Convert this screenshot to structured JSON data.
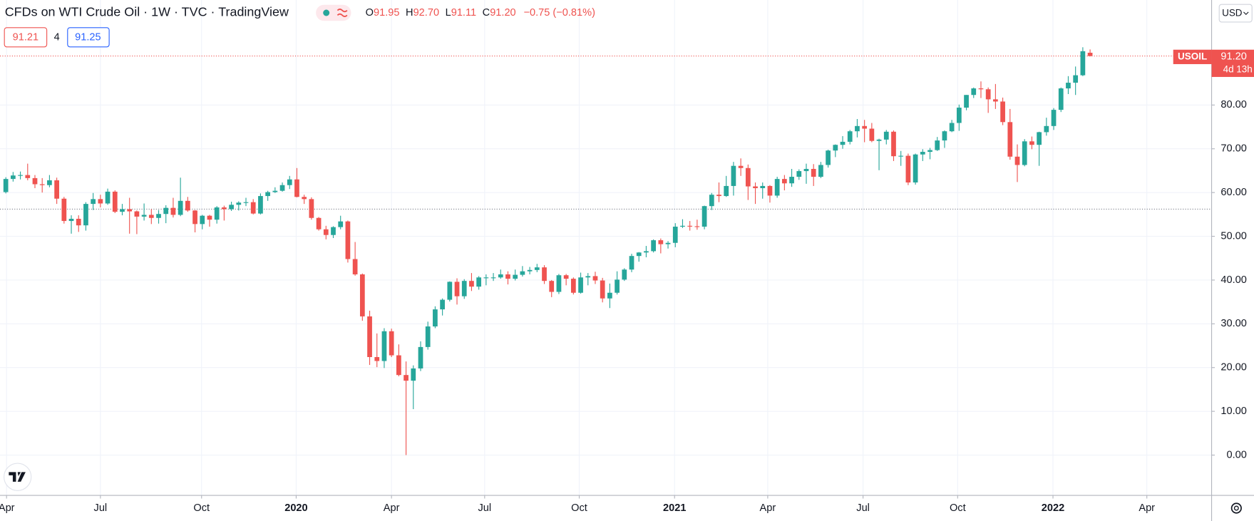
{
  "header": {
    "title": "CFDs on WTI Crude Oil · 1W · TVC · TradingView",
    "ohlc": [
      {
        "key": "O",
        "value": "91.95"
      },
      {
        "key": "H",
        "value": "92.70"
      },
      {
        "key": "L",
        "value": "91.11"
      },
      {
        "key": "C",
        "value": "91.20"
      }
    ],
    "change": "−0.75 (−0.81%)",
    "bid": "91.21",
    "spread": "4",
    "ask": "91.25",
    "currency": "USD"
  },
  "price_label": {
    "symbol": "USOIL",
    "price": "91.20",
    "countdown": "4d 13h"
  },
  "chart_data": {
    "type": "candlestick",
    "up_color": "#26a69a",
    "down_color": "#ef5350",
    "grid": true,
    "open": [
      60.1,
      63.1,
      63.9,
      64.0,
      63.3,
      61.9,
      61.7,
      62.8,
      58.6,
      53.5,
      54.0,
      52.5,
      57.4,
      58.5,
      57.5,
      60.2,
      55.6,
      56.2,
      55.7,
      54.5,
      54.9,
      54.2,
      55.1,
      56.5,
      54.9,
      58.1,
      55.9,
      52.8,
      54.7,
      53.8,
      56.6,
      56.2,
      57.2,
      57.7,
      57.8,
      55.2,
      59.2,
      60.1,
      60.4,
      61.7,
      63.0,
      59.0,
      58.5,
      54.2,
      51.6,
      50.3,
      52.1,
      53.4,
      44.8,
      41.3,
      31.7,
      22.4,
      21.5,
      28.3,
      22.8,
      18.3,
      17.0,
      19.8,
      24.7,
      29.4,
      33.3,
      35.5,
      39.6,
      36.3,
      39.8,
      38.5,
      40.6,
      40.6,
      40.6,
      41.3,
      40.3,
      41.2,
      42.0,
      42.3,
      42.9,
      39.8,
      37.3,
      41.1,
      40.3,
      37.1,
      40.6,
      40.9,
      39.9,
      35.8,
      37.1,
      40.1,
      42.4,
      45.5,
      46.3,
      46.6,
      49.1,
      48.2,
      48.5,
      52.2,
      52.4,
      52.3,
      52.2,
      56.9,
      59.5,
      59.2,
      61.5,
      66.1,
      65.6,
      61.4,
      61.0,
      61.5,
      59.3,
      63.1,
      62.1,
      63.6,
      64.9,
      65.4,
      63.6,
      66.3,
      69.6,
      70.9,
      71.6,
      74.0,
      75.2,
      74.6,
      71.8,
      72.1,
      73.9,
      68.3,
      68.4,
      62.3,
      68.7,
      69.3,
      69.7,
      71.9,
      74.0,
      75.9,
      79.4,
      82.3,
      83.8,
      83.6,
      81.3,
      80.8,
      76.1,
      68.2,
      66.3,
      71.7,
      70.9,
      73.8,
      75.2,
      78.9,
      83.8,
      85.1,
      86.8,
      91.95
    ],
    "high": [
      63.5,
      64.7,
      64.8,
      66.6,
      64.0,
      63.3,
      64.0,
      63.4,
      59.0,
      54.8,
      54.8,
      57.8,
      59.9,
      59.5,
      60.9,
      60.5,
      57.4,
      58.8,
      55.9,
      57.5,
      56.2,
      56.0,
      57.1,
      58.8,
      63.4,
      59.0,
      56.0,
      54.9,
      54.9,
      56.9,
      57.0,
      57.9,
      58.0,
      58.8,
      58.5,
      59.8,
      60.4,
      61.2,
      62.3,
      63.8,
      65.6,
      59.5,
      58.9,
      54.4,
      52.4,
      52.3,
      54.7,
      53.6,
      48.7,
      41.5,
      33.0,
      27.8,
      29.0,
      28.9,
      25.3,
      21.4,
      20.5,
      26.0,
      30.5,
      34.0,
      35.8,
      39.7,
      40.4,
      40.2,
      41.6,
      40.9,
      41.3,
      41.6,
      42.4,
      42.0,
      42.4,
      43.2,
      43.0,
      43.7,
      43.4,
      40.0,
      41.4,
      41.4,
      40.6,
      41.7,
      41.6,
      41.9,
      40.5,
      39.2,
      42.0,
      42.7,
      46.0,
      46.4,
      47.8,
      49.3,
      49.5,
      48.9,
      53.0,
      53.9,
      53.5,
      53.8,
      57.0,
      59.9,
      62.3,
      63.8,
      67.0,
      67.8,
      66.4,
      62.3,
      62.3,
      61.7,
      63.6,
      64.0,
      65.4,
      65.3,
      66.6,
      66.5,
      67.0,
      69.8,
      71.0,
      72.9,
      74.3,
      76.8,
      76.6,
      75.9,
      72.3,
      74.3,
      74.2,
      69.5,
      68.9,
      68.9,
      69.9,
      70.2,
      72.7,
      74.2,
      76.6,
      80.1,
      82.3,
      84.0,
      85.4,
      84.0,
      84.8,
      81.7,
      79.1,
      71.0,
      72.2,
      72.8,
      73.9,
      77.1,
      79.3,
      84.0,
      86.6,
      88.8,
      93.2,
      92.7
    ],
    "low": [
      59.8,
      62.5,
      63.0,
      62.8,
      61.0,
      60.0,
      61.2,
      57.4,
      52.9,
      50.6,
      51.0,
      51.3,
      56.0,
      56.6,
      57.2,
      55.3,
      54.8,
      50.6,
      50.5,
      53.6,
      52.8,
      52.9,
      53.0,
      54.3,
      54.6,
      55.6,
      50.9,
      51.6,
      52.2,
      52.9,
      53.6,
      55.8,
      55.9,
      56.9,
      55.0,
      55.0,
      58.1,
      59.9,
      60.2,
      60.8,
      58.9,
      57.4,
      53.8,
      51.3,
      49.3,
      49.6,
      51.6,
      44.0,
      41.0,
      30.7,
      20.6,
      20.1,
      19.9,
      22.4,
      18.0,
      0.0,
      10.5,
      19.2,
      24.1,
      29.0,
      31.9,
      35.1,
      34.4,
      35.7,
      37.5,
      37.8,
      38.8,
      39.8,
      40.3,
      39.0,
      39.9,
      40.8,
      41.3,
      41.8,
      39.1,
      36.1,
      36.8,
      38.8,
      36.7,
      36.9,
      38.8,
      39.1,
      34.9,
      33.6,
      36.7,
      39.8,
      41.8,
      44.2,
      45.2,
      46.3,
      46.1,
      47.2,
      47.5,
      51.9,
      51.3,
      51.5,
      51.6,
      56.0,
      57.8,
      59.0,
      59.3,
      63.8,
      58.3,
      57.4,
      58.6,
      57.7,
      58.8,
      60.5,
      61.3,
      62.9,
      62.0,
      61.5,
      63.3,
      65.7,
      68.1,
      70.0,
      71.0,
      72.6,
      71.5,
      71.5,
      65.1,
      71.0,
      67.2,
      66.1,
      61.7,
      61.8,
      67.2,
      67.6,
      69.5,
      70.2,
      73.8,
      74.1,
      78.8,
      81.6,
      81.6,
      78.2,
      79.1,
      75.4,
      67.5,
      62.4,
      66.0,
      69.9,
      66.1,
      73.0,
      74.3,
      78.4,
      82.5,
      82.3,
      86.6,
      91.11
    ],
    "close": [
      63.1,
      63.9,
      64.0,
      63.3,
      61.9,
      61.7,
      62.8,
      58.6,
      53.5,
      54.0,
      52.5,
      57.4,
      58.5,
      57.5,
      60.2,
      55.6,
      56.2,
      55.7,
      54.5,
      54.9,
      54.2,
      55.1,
      56.5,
      54.9,
      58.1,
      55.9,
      52.8,
      54.7,
      53.8,
      56.6,
      56.2,
      57.2,
      57.7,
      57.8,
      55.2,
      59.2,
      60.1,
      60.4,
      61.7,
      63.0,
      59.0,
      58.5,
      54.2,
      51.6,
      50.3,
      52.1,
      53.4,
      44.8,
      41.3,
      31.7,
      22.4,
      21.5,
      28.3,
      22.8,
      18.3,
      17.0,
      19.8,
      24.7,
      29.4,
      33.3,
      35.5,
      39.6,
      36.3,
      39.8,
      38.5,
      40.6,
      40.6,
      40.6,
      41.3,
      40.3,
      41.2,
      42.0,
      42.3,
      42.9,
      39.8,
      37.3,
      41.1,
      40.3,
      37.1,
      40.6,
      40.9,
      39.9,
      35.8,
      37.1,
      40.1,
      42.4,
      45.5,
      46.3,
      46.6,
      49.1,
      48.2,
      48.5,
      52.2,
      52.4,
      52.3,
      52.2,
      56.9,
      59.5,
      59.2,
      61.5,
      66.1,
      65.6,
      61.4,
      61.0,
      61.5,
      59.3,
      63.1,
      62.1,
      63.6,
      64.9,
      65.4,
      63.6,
      66.3,
      69.6,
      70.9,
      71.6,
      74.0,
      75.2,
      74.6,
      71.8,
      72.1,
      73.9,
      68.3,
      68.4,
      62.3,
      68.7,
      69.3,
      69.7,
      71.9,
      74.0,
      75.9,
      79.4,
      82.3,
      83.8,
      83.6,
      81.3,
      80.8,
      76.1,
      68.2,
      66.3,
      71.7,
      70.9,
      73.8,
      75.2,
      78.9,
      83.8,
      85.1,
      86.8,
      92.3,
      91.2
    ],
    "reference_line": 56.2,
    "ylim": [
      -9.2,
      104
    ],
    "yticks": [
      {
        "value": 0,
        "label": "0.00"
      },
      {
        "value": 10,
        "label": "10.00"
      },
      {
        "value": 20,
        "label": "20.00"
      },
      {
        "value": 30,
        "label": "30.00"
      },
      {
        "value": 40,
        "label": "40.00"
      },
      {
        "value": 50,
        "label": "50.00"
      },
      {
        "value": 60,
        "label": "60.00"
      },
      {
        "value": 70,
        "label": "70.00"
      },
      {
        "value": 80,
        "label": "80.00"
      }
    ],
    "xlim": [
      -0.8,
      165.7
    ],
    "xticks": [
      {
        "value": 0.1,
        "label": "Apr"
      },
      {
        "value": 13,
        "label": "Jul"
      },
      {
        "value": 26.9,
        "label": "Oct"
      },
      {
        "value": 39.9,
        "label": "2020"
      },
      {
        "value": 53,
        "label": "Apr"
      },
      {
        "value": 65.8,
        "label": "Jul"
      },
      {
        "value": 78.8,
        "label": "Oct"
      },
      {
        "value": 91.9,
        "label": "2021"
      },
      {
        "value": 104.7,
        "label": "Apr"
      },
      {
        "value": 117.8,
        "label": "Jul"
      },
      {
        "value": 130.8,
        "label": "Oct"
      },
      {
        "value": 143.9,
        "label": "2022"
      },
      {
        "value": 156.8,
        "label": "Apr"
      }
    ]
  }
}
